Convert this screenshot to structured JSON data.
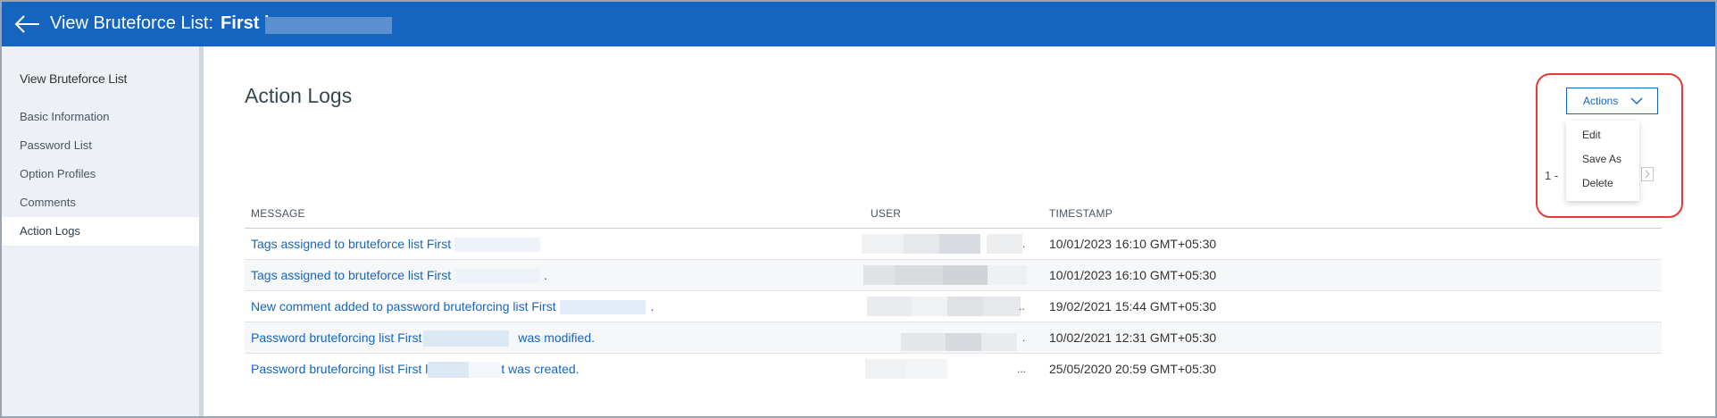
{
  "header": {
    "title_label": "View Bruteforce List:",
    "title_name": "First l"
  },
  "sidebar": {
    "title": "View Bruteforce List",
    "items": [
      {
        "label": "Basic Information"
      },
      {
        "label": "Password List"
      },
      {
        "label": "Option Profiles"
      },
      {
        "label": "Comments"
      },
      {
        "label": "Action Logs",
        "active": true
      }
    ]
  },
  "main": {
    "title": "Action Logs",
    "actions_button": "Actions",
    "actions_menu": [
      "Edit",
      "Save As",
      "Delete"
    ],
    "pager_text": "1 -"
  },
  "table": {
    "columns": [
      "MESSAGE",
      "USER",
      "TIMESTAMP"
    ],
    "rows": [
      {
        "message": "Tags assigned to bruteforce list First",
        "message_suffix": "",
        "user_suffix": ".",
        "timestamp": "10/01/2023 16:10 GMT+05:30"
      },
      {
        "message": "Tags assigned to bruteforce list First",
        "message_suffix": ".",
        "user_suffix": "",
        "timestamp": "10/01/2023 16:10 GMT+05:30"
      },
      {
        "message": "New comment added to password bruteforcing list First",
        "message_suffix": ".",
        "user_suffix": "..",
        "timestamp": "19/02/2021 15:44 GMT+05:30"
      },
      {
        "message": "Password bruteforcing list First",
        "message_suffix": "was modified.",
        "user_suffix": ".",
        "timestamp": "10/02/2021 12:31 GMT+05:30"
      },
      {
        "message": "Password bruteforcing list First l",
        "message_suffix": "t was created.",
        "user_suffix": "...",
        "timestamp": "25/05/2020 20:59 GMT+05:30"
      }
    ]
  },
  "colors": {
    "header_bg": "#1565c0",
    "link": "#1565c0",
    "highlight_ring": "#e53935",
    "sidebar_bg": "#edf1f6"
  },
  "icons": [
    "back-arrow-icon",
    "chevron-down-icon",
    "chevron-right-icon"
  ]
}
